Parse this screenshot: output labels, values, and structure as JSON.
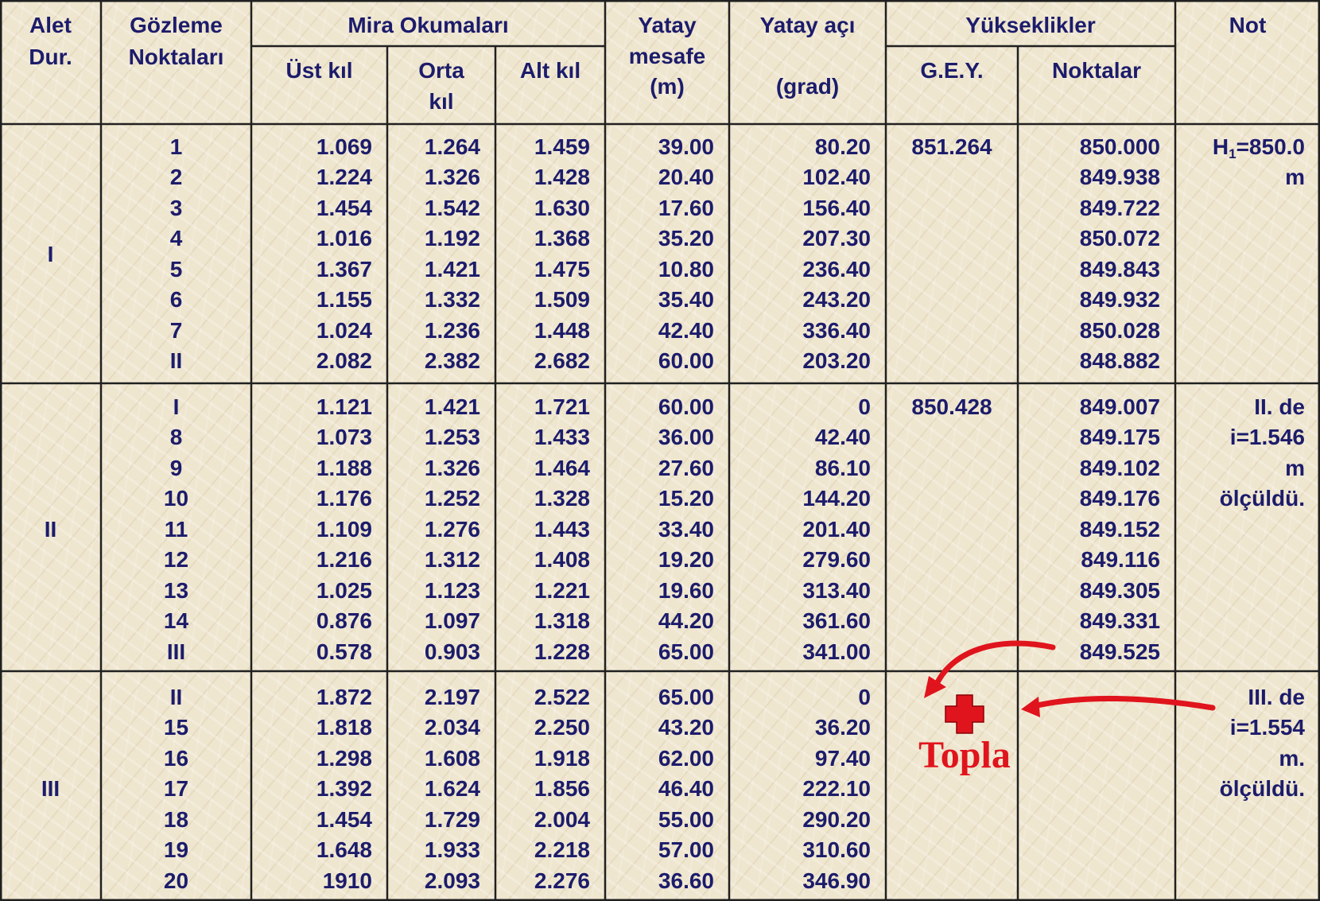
{
  "header": {
    "alet": [
      "Alet",
      "Dur."
    ],
    "gozleme": [
      "Gözleme",
      "Noktaları"
    ],
    "mira": "Mira Okumaları",
    "ust": "Üst kıl",
    "orta": [
      "Orta",
      "kıl"
    ],
    "alt": "Alt kıl",
    "mesafe": [
      "Yatay",
      "mesafe",
      "(m)"
    ],
    "aci": [
      "Yatay açı",
      "(grad)"
    ],
    "yukseklikler": "Yükseklikler",
    "gey": "G.E.Y.",
    "noktalar": "Noktalar",
    "not": "Not"
  },
  "groups": [
    {
      "station": "I",
      "gey": "851.264",
      "note": [
        {
          "base": "H",
          "sub": "1",
          "rest": "=850.0"
        },
        "m"
      ],
      "rows": [
        {
          "point": "1",
          "ust": "1.069",
          "orta": "1.264",
          "alt": "1.459",
          "mesafe": "39.00",
          "aci": "80.20",
          "nokta": "850.000"
        },
        {
          "point": "2",
          "ust": "1.224",
          "orta": "1.326",
          "alt": "1.428",
          "mesafe": "20.40",
          "aci": "102.40",
          "nokta": "849.938"
        },
        {
          "point": "3",
          "ust": "1.454",
          "orta": "1.542",
          "alt": "1.630",
          "mesafe": "17.60",
          "aci": "156.40",
          "nokta": "849.722"
        },
        {
          "point": "4",
          "ust": "1.016",
          "orta": "1.192",
          "alt": "1.368",
          "mesafe": "35.20",
          "aci": "207.30",
          "nokta": "850.072"
        },
        {
          "point": "5",
          "ust": "1.367",
          "orta": "1.421",
          "alt": "1.475",
          "mesafe": "10.80",
          "aci": "236.40",
          "nokta": "849.843"
        },
        {
          "point": "6",
          "ust": "1.155",
          "orta": "1.332",
          "alt": "1.509",
          "mesafe": "35.40",
          "aci": "243.20",
          "nokta": "849.932"
        },
        {
          "point": "7",
          "ust": "1.024",
          "orta": "1.236",
          "alt": "1.448",
          "mesafe": "42.40",
          "aci": "336.40",
          "nokta": "850.028"
        },
        {
          "point": "II",
          "ust": "2.082",
          "orta": "2.382",
          "alt": "2.682",
          "mesafe": "60.00",
          "aci": "203.20",
          "nokta": "848.882"
        }
      ]
    },
    {
      "station": "II",
      "gey": "850.428",
      "note": [
        "II. de",
        "i=1.546",
        "m",
        "ölçüldü."
      ],
      "rows": [
        {
          "point": "I",
          "ust": "1.121",
          "orta": "1.421",
          "alt": "1.721",
          "mesafe": "60.00",
          "aci": "0",
          "nokta": "849.007"
        },
        {
          "point": "8",
          "ust": "1.073",
          "orta": "1.253",
          "alt": "1.433",
          "mesafe": "36.00",
          "aci": "42.40",
          "nokta": "849.175"
        },
        {
          "point": "9",
          "ust": "1.188",
          "orta": "1.326",
          "alt": "1.464",
          "mesafe": "27.60",
          "aci": "86.10",
          "nokta": "849.102"
        },
        {
          "point": "10",
          "ust": "1.176",
          "orta": "1.252",
          "alt": "1.328",
          "mesafe": "15.20",
          "aci": "144.20",
          "nokta": "849.176"
        },
        {
          "point": "11",
          "ust": "1.109",
          "orta": "1.276",
          "alt": "1.443",
          "mesafe": "33.40",
          "aci": "201.40",
          "nokta": "849.152"
        },
        {
          "point": "12",
          "ust": "1.216",
          "orta": "1.312",
          "alt": "1.408",
          "mesafe": "19.20",
          "aci": "279.60",
          "nokta": "849.116"
        },
        {
          "point": "13",
          "ust": "1.025",
          "orta": "1.123",
          "alt": "1.221",
          "mesafe": "19.60",
          "aci": "313.40",
          "nokta": "849.305"
        },
        {
          "point": "14",
          "ust": "0.876",
          "orta": "1.097",
          "alt": "1.318",
          "mesafe": "44.20",
          "aci": "361.60",
          "nokta": "849.331"
        },
        {
          "point": "III",
          "ust": "0.578",
          "orta": "0.903",
          "alt": "1.228",
          "mesafe": "65.00",
          "aci": "341.00",
          "nokta": "849.525"
        }
      ]
    },
    {
      "station": "III",
      "note": [
        "III. de",
        "i=1.554",
        "m.",
        "ölçüldü."
      ],
      "rows": [
        {
          "point": "II",
          "ust": "1.872",
          "orta": "2.197",
          "alt": "2.522",
          "mesafe": "65.00",
          "aci": "0"
        },
        {
          "point": "15",
          "ust": "1.818",
          "orta": "2.034",
          "alt": "2.250",
          "mesafe": "43.20",
          "aci": "36.20"
        },
        {
          "point": "16",
          "ust": "1.298",
          "orta": "1.608",
          "alt": "1.918",
          "mesafe": "62.00",
          "aci": "97.40"
        },
        {
          "point": "17",
          "ust": "1.392",
          "orta": "1.624",
          "alt": "1.856",
          "mesafe": "46.40",
          "aci": "222.10"
        },
        {
          "point": "18",
          "ust": "1.454",
          "orta": "1.729",
          "alt": "2.004",
          "mesafe": "55.00",
          "aci": "290.20"
        },
        {
          "point": "19",
          "ust": "1.648",
          "orta": "1.933",
          "alt": "2.218",
          "mesafe": "57.00",
          "aci": "310.60"
        },
        {
          "point": "20",
          "ust": "1910",
          "orta": "2.093",
          "alt": "2.276",
          "mesafe": "36.60",
          "aci": "346.90"
        }
      ]
    }
  ],
  "annotation": "Topla"
}
